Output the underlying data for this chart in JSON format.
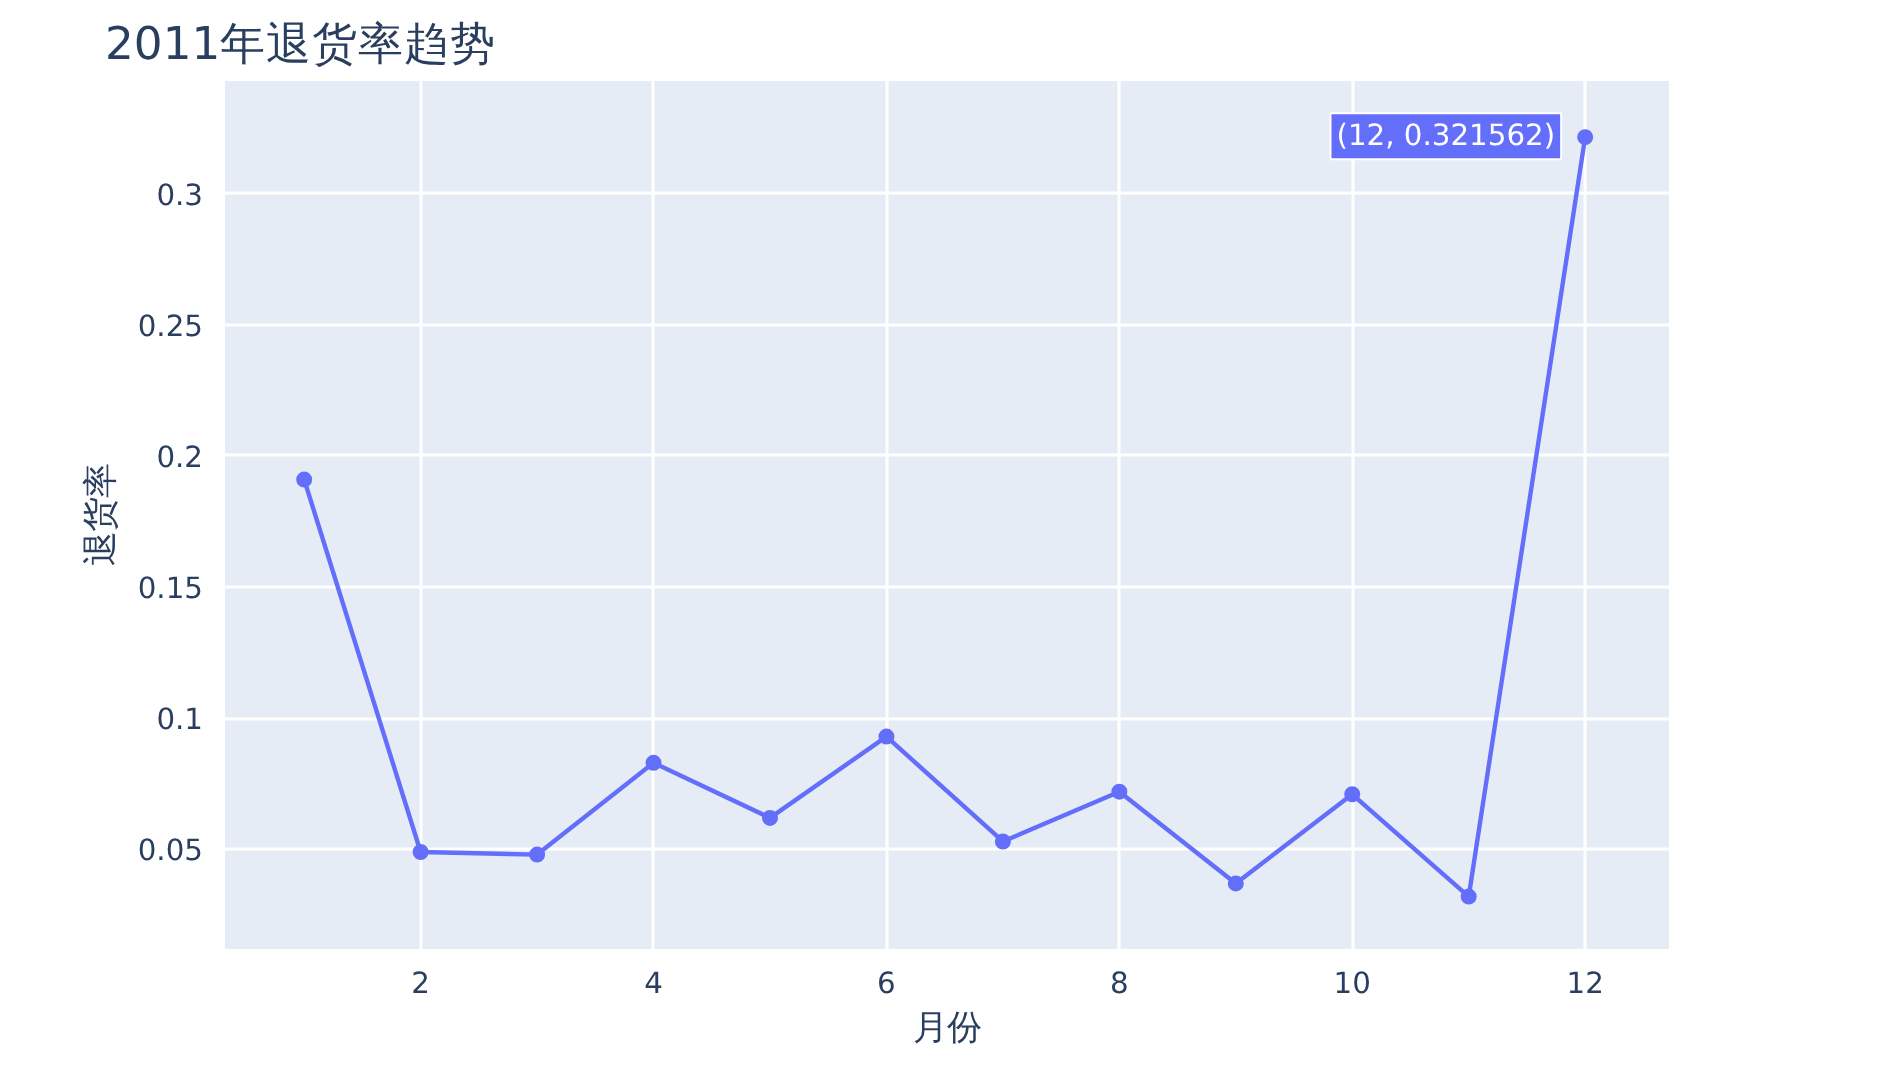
{
  "chart_data": {
    "type": "line",
    "title": "2011年退货率趋势",
    "xlabel": "月份",
    "ylabel": "退货率",
    "x": [
      1,
      2,
      3,
      4,
      5,
      6,
      7,
      8,
      9,
      10,
      11,
      12
    ],
    "series": [
      {
        "color": "#636efa",
        "values": [
          0.191,
          0.049,
          0.048,
          0.083,
          0.062,
          0.093,
          0.053,
          0.072,
          0.037,
          0.071,
          0.032,
          0.321562
        ]
      }
    ],
    "xlim": [
      0.32,
      12.72
    ],
    "ylim": [
      0.012,
      0.343
    ],
    "xticks": [
      2,
      4,
      6,
      8,
      10,
      12
    ],
    "yticks": [
      0.05,
      0.1,
      0.15,
      0.2,
      0.25,
      0.3
    ],
    "grid": true,
    "marker": "circle",
    "line_style": "solid",
    "annotations": [
      {
        "text": "(12, 0.321562)",
        "x": 12,
        "y": 0.321562
      }
    ]
  }
}
